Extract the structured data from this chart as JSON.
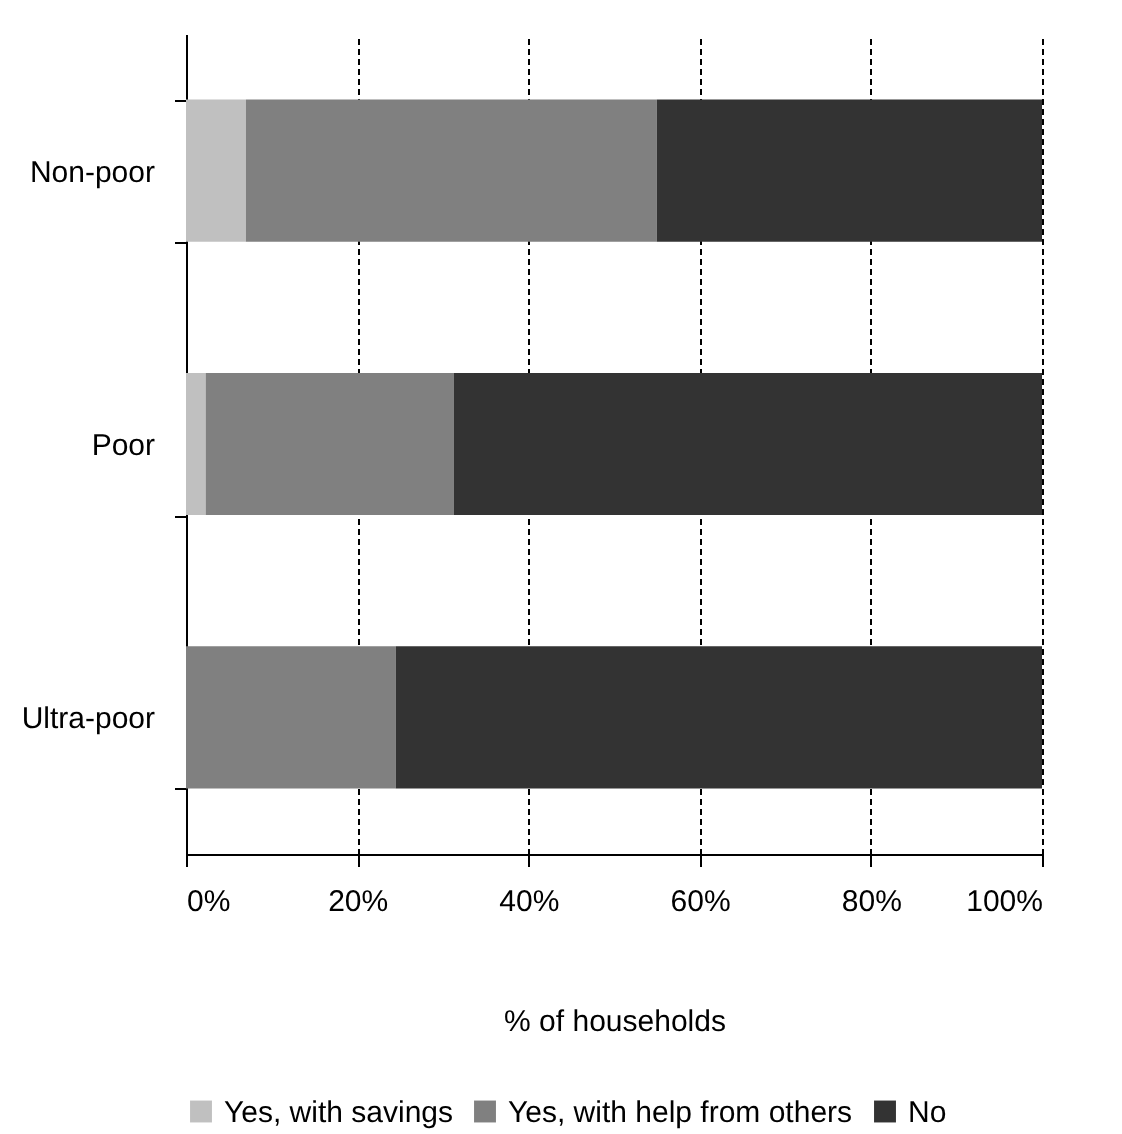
{
  "chart_data": {
    "type": "bar",
    "orientation": "horizontal",
    "stacked": true,
    "categories": [
      "Non-poor",
      "Poor",
      "Ultra-poor"
    ],
    "series": [
      {
        "name": "Yes, with savings",
        "color": "#c0c0c0",
        "values": [
          7,
          2.3,
          0
        ]
      },
      {
        "name": "Yes, with help from others",
        "color": "#808080",
        "values": [
          48,
          29,
          24.5
        ]
      },
      {
        "name": "No",
        "color": "#333333",
        "values": [
          45,
          68.7,
          75.5
        ]
      }
    ],
    "xlim": [
      0,
      100
    ],
    "xticks": [
      {
        "value": 0,
        "label": "0%"
      },
      {
        "value": 20,
        "label": "20%"
      },
      {
        "value": 40,
        "label": "40%"
      },
      {
        "value": 60,
        "label": "60%"
      },
      {
        "value": 80,
        "label": "80%"
      },
      {
        "value": 100,
        "label": "100%"
      }
    ],
    "xlabel": "% of households",
    "grid": "x",
    "legend": "bottom"
  }
}
